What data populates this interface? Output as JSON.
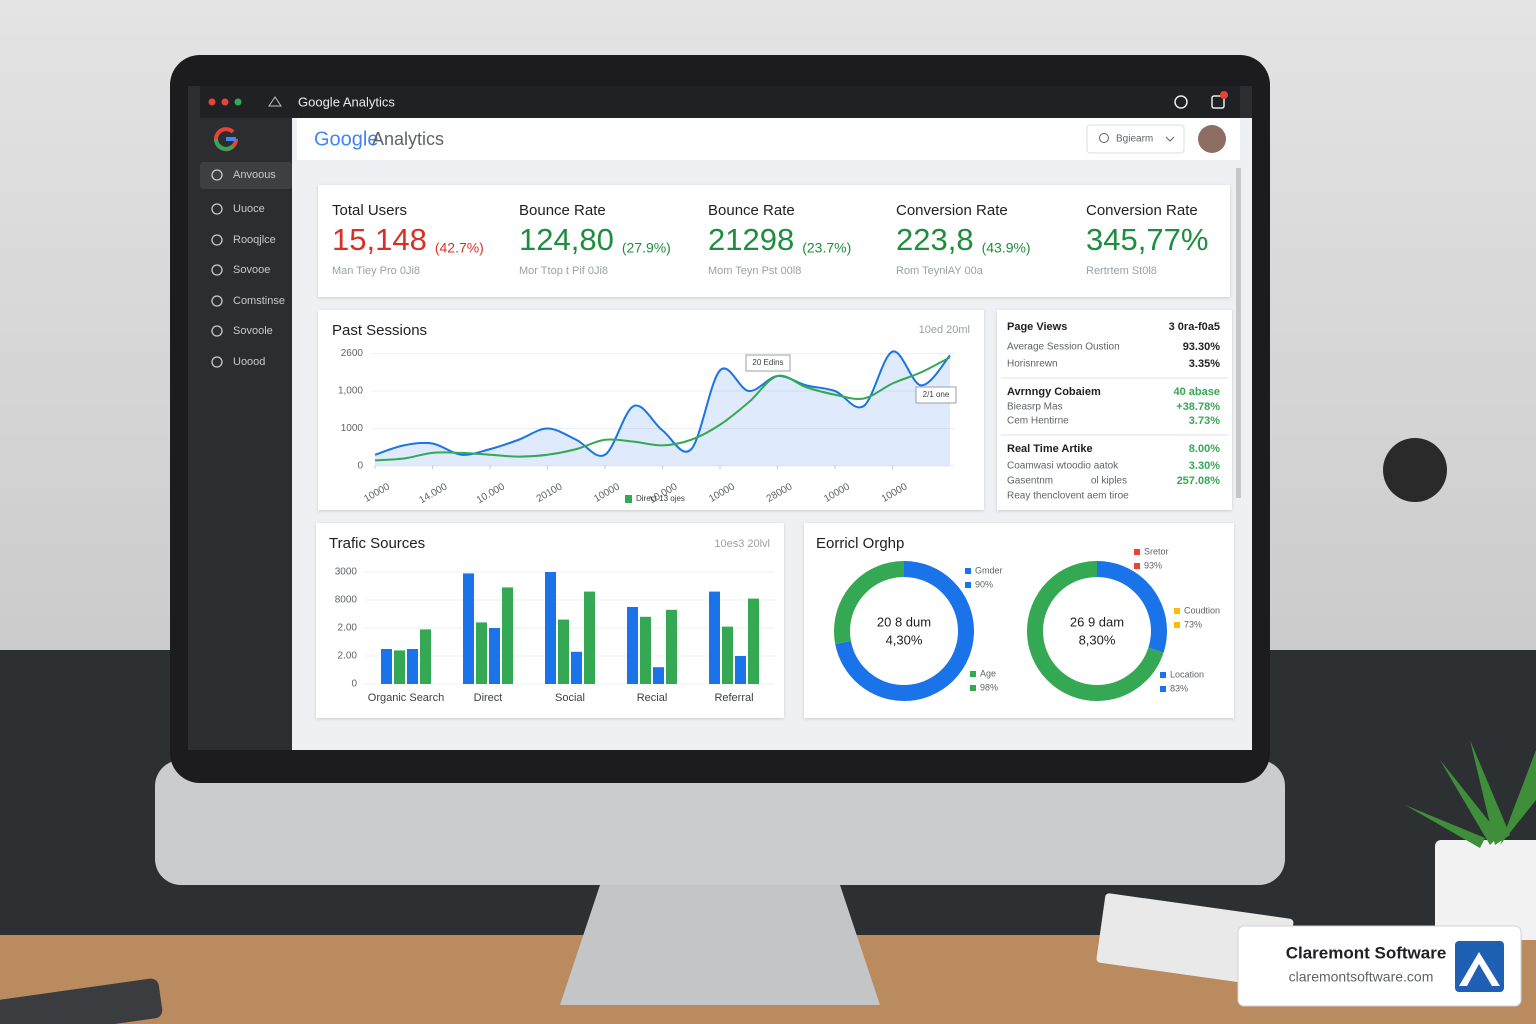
{
  "window": {
    "title": "Google Analytics"
  },
  "header": {
    "logo": "Google",
    "product": "Analytics",
    "search": "Bgiearm"
  },
  "sidebar": {
    "items": [
      "Anvoous",
      "Uuoce",
      "Rooqjlce",
      "Sovooe",
      "Comstinse",
      "Sovoole",
      "Uoood"
    ]
  },
  "kpis": [
    {
      "label": "Total Users",
      "value": "15,148",
      "change": "(42.7%)",
      "note": "Man Tiey Pro 0Ji8",
      "color": "#d93025"
    },
    {
      "label": "Bounce Rate",
      "value": "124,80",
      "change": "(27.9%)",
      "note": "Mor Ttop t Pif 0Ji8",
      "color": "#1e8e3e"
    },
    {
      "label": "Bounce Rate",
      "value": "21298",
      "change": "(23.7%)",
      "note": "Mom Teyn Pst 00l8",
      "color": "#1e8e3e"
    },
    {
      "label": "Conversion Rate",
      "value": "223,8",
      "change": "(43.9%)",
      "note": "Rom TeynlAY 00a",
      "color": "#1e8e3e"
    },
    {
      "label": "Conversion Rate",
      "value": "345,77%",
      "note": "Rertrtem St0l8",
      "color": "#1e8e3e"
    }
  ],
  "stats": {
    "sections": [
      {
        "rows": [
          [
            "Page Views",
            "3 0ra-f0a5"
          ],
          [
            "Average Session Oustion",
            "93.30%"
          ],
          [
            "Horisnrewn",
            "3.35%"
          ]
        ]
      },
      {
        "rows": [
          [
            "Avrnngy Cobaiem",
            "40 abase"
          ],
          [
            "Bieasrp Mas",
            "+38.78%"
          ],
          [
            "Cem Hentirne",
            "3.73%"
          ]
        ]
      },
      {
        "rows": [
          [
            "Real Time Artike",
            "8.00%"
          ],
          [
            "Coamwasi wtoodio aatok",
            "3.30%"
          ],
          [
            "Gasentnm",
            "ol kiples",
            "257.08%"
          ],
          [
            "Reay thenclovent aem tiroe"
          ]
        ]
      }
    ]
  },
  "chart_data": [
    {
      "type": "line",
      "title": "Past Sessions",
      "range": "10ed 20ml",
      "x": [
        0,
        1,
        2,
        3,
        4,
        5,
        6,
        7,
        8,
        9,
        10,
        11,
        12,
        13,
        14,
        15,
        16,
        17,
        18,
        19,
        20
      ],
      "xlim": [
        0,
        20
      ],
      "xticks": [
        {
          "value": 0,
          "label": "10000"
        },
        {
          "value": 2,
          "label": "14.000"
        },
        {
          "value": 4,
          "label": "10.000"
        },
        {
          "value": 6,
          "label": "20100"
        },
        {
          "value": 8,
          "label": "10000"
        },
        {
          "value": 10,
          "label": "10.000"
        },
        {
          "value": 12,
          "label": "10000"
        },
        {
          "value": 14,
          "label": "28000"
        },
        {
          "value": 16,
          "label": "10000"
        },
        {
          "value": 18,
          "label": "10000"
        }
      ],
      "ylim": [
        0,
        3200
      ],
      "yticks": [
        0,
        1000,
        {
          "value": 2000,
          "label": "1,000"
        },
        {
          "value": 3000,
          "label": "2600"
        }
      ],
      "grid": true,
      "series": [
        {
          "color": "#1a73e8",
          "area": true,
          "values": [
            300,
            550,
            600,
            300,
            450,
            700,
            1000,
            700,
            300,
            1600,
            950,
            450,
            2550,
            2000,
            2400,
            2150,
            2000,
            1600,
            3050,
            2150,
            2950
          ]
        },
        {
          "name": "Direct 13 ojes",
          "color": "#34a853",
          "values": [
            150,
            200,
            350,
            350,
            300,
            250,
            300,
            450,
            700,
            650,
            550,
            700,
            1100,
            1700,
            2400,
            2100,
            1900,
            1800,
            2200,
            2500,
            2900
          ]
        }
      ],
      "annotations": [
        "20 Edins",
        "2/1 one"
      ]
    },
    {
      "type": "bar",
      "title": "Trafic Sources",
      "range": "10es3 20lvl",
      "categories": [
        "Organic Search",
        "Direct",
        "Social",
        "Recial",
        "Referral"
      ],
      "ylim": [
        0,
        4000
      ],
      "yticks": [
        0,
        {
          "value": 1000,
          "label": "2.00"
        },
        {
          "value": 2000,
          "label": "2.00"
        },
        {
          "value": 3000,
          "label": "8000"
        },
        {
          "value": 4000,
          "label": "3000"
        }
      ],
      "series": [
        {
          "color": "#1a73e8",
          "values": [
            1250,
            3950,
            4000,
            2750,
            3300
          ]
        },
        {
          "color": "#34a853",
          "values": [
            1200,
            2200,
            2300,
            2400,
            2050
          ]
        },
        {
          "color": "#1a73e8",
          "values": [
            1250,
            2000,
            1150,
            600,
            1000
          ]
        },
        {
          "color": "#34a853",
          "values": [
            1950,
            3450,
            3300,
            2650,
            3050
          ]
        }
      ]
    },
    {
      "type": "donut",
      "title": "Eorricl Orghp",
      "charts": [
        {
          "center": [
            "20 8 dum",
            "4,30%"
          ],
          "values": [
            72,
            28
          ],
          "colors": [
            "#1a73e8",
            "#34a853"
          ]
        },
        {
          "center": [
            "26 9 dam",
            "8,30%"
          ],
          "values": [
            30,
            70
          ],
          "colors": [
            "#1a73e8",
            "#34a853"
          ]
        }
      ],
      "legend": [
        {
          "label": "Gmder",
          "share": "90%",
          "color": "#1a73e8"
        },
        {
          "label": "Age",
          "share": "98%",
          "color": "#34a853"
        },
        {
          "label": "Sretor",
          "share": "93%",
          "color": "#ea4335"
        },
        {
          "label": "Coudtion",
          "share": "73%",
          "color": "#fbbc04"
        },
        {
          "label": "Location",
          "share": "83%",
          "color": "#1a73e8"
        }
      ]
    }
  ],
  "badge": {
    "brand": "Claremont Software",
    "url": "claremontsoftware.com"
  }
}
